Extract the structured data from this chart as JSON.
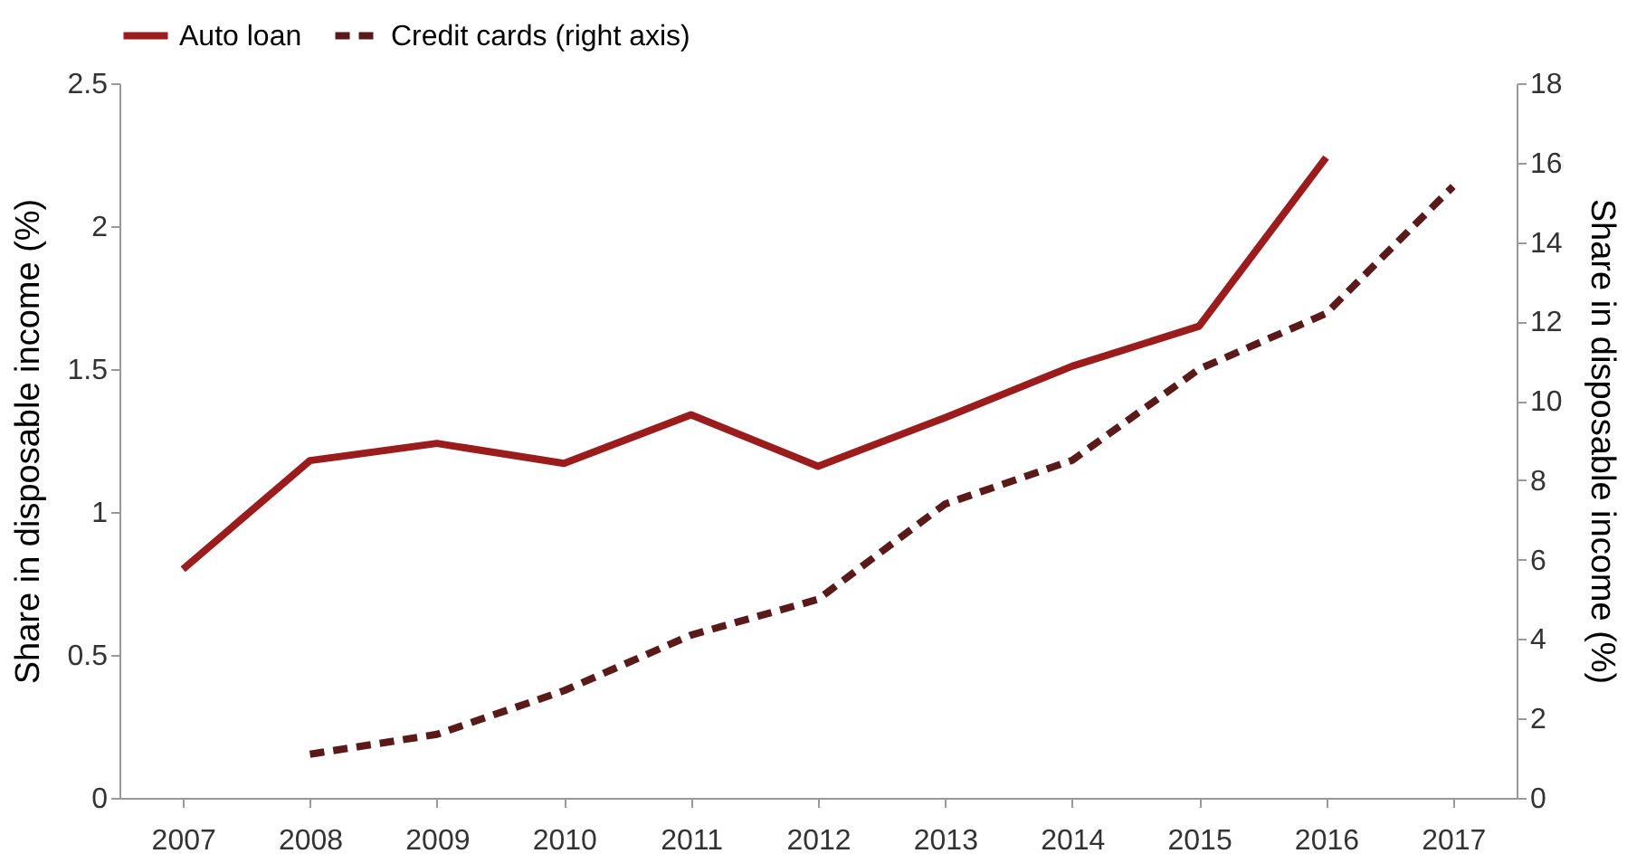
{
  "chart_data": {
    "type": "line",
    "categories": [
      "2007",
      "2008",
      "2009",
      "2010",
      "2011",
      "2012",
      "2013",
      "2014",
      "2015",
      "2016",
      "2017"
    ],
    "ylabel": "Share in disposable income (%)",
    "y2label": "Share in disposable income (%)",
    "ylim": [
      0,
      2.5
    ],
    "yticks": [
      0,
      0.5,
      1,
      1.5,
      2,
      2.5
    ],
    "y2lim": [
      0,
      18
    ],
    "y2ticks": [
      0,
      2,
      4,
      6,
      8,
      10,
      12,
      14,
      16,
      18
    ],
    "legend": "top",
    "grid": false,
    "marker": "none",
    "series": [
      {
        "name": "Auto loan",
        "color": "#9b1c1c",
        "line_style": "solid",
        "values": [
          0.8,
          1.18,
          1.24,
          1.17,
          1.34,
          1.16,
          1.33,
          1.51,
          1.65,
          2.24,
          null
        ]
      },
      {
        "name": "Credit cards (right axis)",
        "color": "#5a1a1a",
        "line_style": "dashed",
        "axis": "y2",
        "values": [
          null,
          1.1,
          1.6,
          2.7,
          4.1,
          5.0,
          7.4,
          8.5,
          10.8,
          12.2,
          15.4
        ]
      }
    ]
  }
}
